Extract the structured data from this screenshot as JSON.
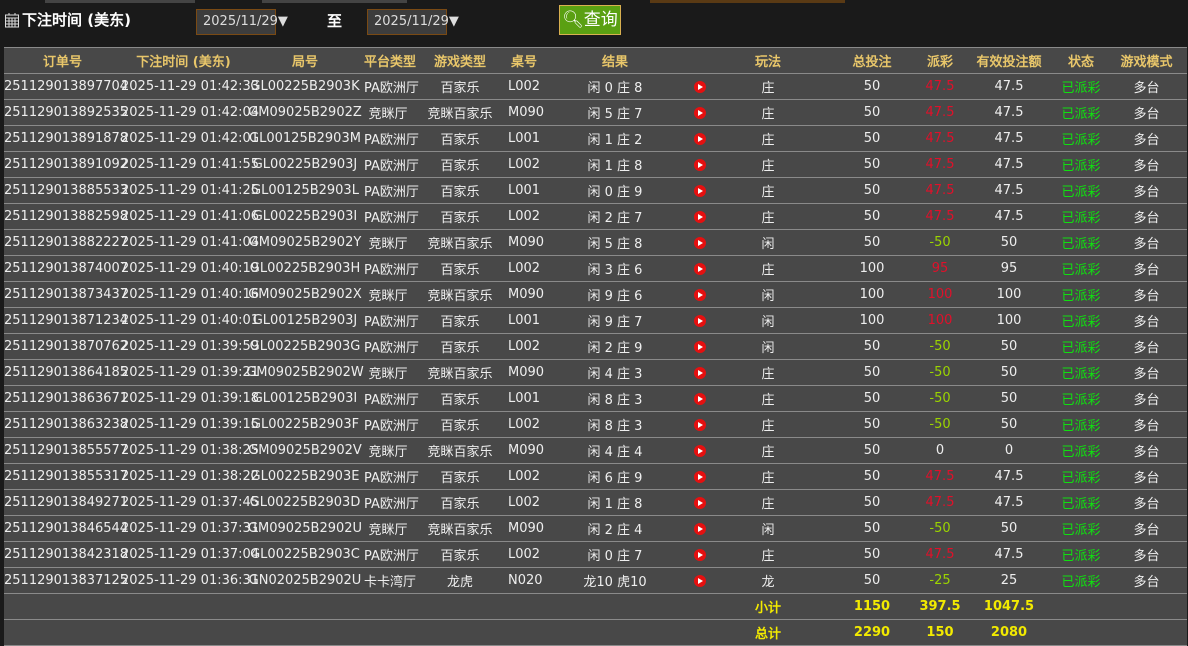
{
  "filter": {
    "label": "下注时间 (美东)",
    "start": "2025/11/29▼",
    "to": "至",
    "end": "2025/11/29▼",
    "query": "查询"
  },
  "headers": [
    "订单号",
    "下注时间 (美东)",
    "局号",
    "平台类型",
    "游戏类型",
    "桌号",
    "结果",
    "",
    "玩法",
    "总投注",
    "派彩",
    "有效投注额",
    "状态",
    "游戏模式"
  ],
  "rows": [
    [
      "251129013897704",
      "2025-11-29 01:42:33",
      "GL00225B2903K",
      "PA欧洲厅",
      "百家乐",
      "L002",
      "闲 0 庄 8",
      "庄",
      "50",
      "47.5",
      "47.5",
      "已派彩",
      "多台"
    ],
    [
      "251129013892535",
      "2025-11-29 01:42:04",
      "GM09025B2902Z",
      "竞眯厅",
      "竞眯百家乐",
      "M090",
      "闲 5 庄 7",
      "庄",
      "50",
      "47.5",
      "47.5",
      "已派彩",
      "多台"
    ],
    [
      "251129013891878",
      "2025-11-29 01:42:01",
      "GL00125B2903M",
      "PA欧洲厅",
      "百家乐",
      "L001",
      "闲 1 庄 2",
      "庄",
      "50",
      "47.5",
      "47.5",
      "已派彩",
      "多台"
    ],
    [
      "251129013891092",
      "2025-11-29 01:41:55",
      "GL00225B2903J",
      "PA欧洲厅",
      "百家乐",
      "L002",
      "闲 1 庄 8",
      "庄",
      "50",
      "47.5",
      "47.5",
      "已派彩",
      "多台"
    ],
    [
      "251129013885533",
      "2025-11-29 01:41:25",
      "GL00125B2903L",
      "PA欧洲厅",
      "百家乐",
      "L001",
      "闲 0 庄 9",
      "庄",
      "50",
      "47.5",
      "47.5",
      "已派彩",
      "多台"
    ],
    [
      "251129013882598",
      "2025-11-29 01:41:06",
      "GL00225B2903I",
      "PA欧洲厅",
      "百家乐",
      "L002",
      "闲 2 庄 7",
      "庄",
      "50",
      "47.5",
      "47.5",
      "已派彩",
      "多台"
    ],
    [
      "251129013882227",
      "2025-11-29 01:41:04",
      "GM09025B2902Y",
      "竞眯厅",
      "竞眯百家乐",
      "M090",
      "闲 5 庄 8",
      "闲",
      "50",
      "-50",
      "50",
      "已派彩",
      "多台"
    ],
    [
      "251129013874007",
      "2025-11-29 01:40:19",
      "GL00225B2903H",
      "PA欧洲厅",
      "百家乐",
      "L002",
      "闲 3 庄 6",
      "庄",
      "100",
      "95",
      "95",
      "已派彩",
      "多台"
    ],
    [
      "251129013873437",
      "2025-11-29 01:40:16",
      "GM09025B2902X",
      "竞眯厅",
      "竞眯百家乐",
      "M090",
      "闲 9 庄 6",
      "闲",
      "100",
      "100",
      "100",
      "已派彩",
      "多台"
    ],
    [
      "251129013871234",
      "2025-11-29 01:40:01",
      "GL00125B2903J",
      "PA欧洲厅",
      "百家乐",
      "L001",
      "闲 9 庄 7",
      "闲",
      "100",
      "100",
      "100",
      "已派彩",
      "多台"
    ],
    [
      "251129013870762",
      "2025-11-29 01:39:59",
      "GL00225B2903G",
      "PA欧洲厅",
      "百家乐",
      "L002",
      "闲 2 庄 9",
      "闲",
      "50",
      "-50",
      "50",
      "已派彩",
      "多台"
    ],
    [
      "251129013864185",
      "2025-11-29 01:39:21",
      "GM09025B2902W",
      "竞眯厅",
      "竞眯百家乐",
      "M090",
      "闲 4 庄 3",
      "庄",
      "50",
      "-50",
      "50",
      "已派彩",
      "多台"
    ],
    [
      "251129013863671",
      "2025-11-29 01:39:18",
      "GL00125B2903I",
      "PA欧洲厅",
      "百家乐",
      "L001",
      "闲 8 庄 3",
      "庄",
      "50",
      "-50",
      "50",
      "已派彩",
      "多台"
    ],
    [
      "251129013863238",
      "2025-11-29 01:39:15",
      "GL00225B2903F",
      "PA欧洲厅",
      "百家乐",
      "L002",
      "闲 8 庄 3",
      "庄",
      "50",
      "-50",
      "50",
      "已派彩",
      "多台"
    ],
    [
      "251129013855577",
      "2025-11-29 01:38:25",
      "GM09025B2902V",
      "竞眯厅",
      "竞眯百家乐",
      "M090",
      "闲 4 庄 4",
      "庄",
      "50",
      "0",
      "0",
      "已派彩",
      "多台"
    ],
    [
      "251129013855317",
      "2025-11-29 01:38:22",
      "GL00225B2903E",
      "PA欧洲厅",
      "百家乐",
      "L002",
      "闲 6 庄 9",
      "庄",
      "50",
      "47.5",
      "47.5",
      "已派彩",
      "多台"
    ],
    [
      "251129013849271",
      "2025-11-29 01:37:45",
      "GL00225B2903D",
      "PA欧洲厅",
      "百家乐",
      "L002",
      "闲 1 庄 8",
      "庄",
      "50",
      "47.5",
      "47.5",
      "已派彩",
      "多台"
    ],
    [
      "251129013846544",
      "2025-11-29 01:37:31",
      "GM09025B2902U",
      "竞眯厅",
      "竞眯百家乐",
      "M090",
      "闲 2 庄 4",
      "闲",
      "50",
      "-50",
      "50",
      "已派彩",
      "多台"
    ],
    [
      "251129013842318",
      "2025-11-29 01:37:04",
      "GL00225B2903C",
      "PA欧洲厅",
      "百家乐",
      "L002",
      "闲 0 庄 7",
      "庄",
      "50",
      "47.5",
      "47.5",
      "已派彩",
      "多台"
    ],
    [
      "251129013837125",
      "2025-11-29 01:36:31",
      "GN02025B2902U",
      "卡卡湾厅",
      "龙虎",
      "N020",
      "龙10 虎10",
      "龙",
      "50",
      "-25",
      "25",
      "已派彩",
      "多台"
    ]
  ],
  "subtotal": {
    "label": "小计",
    "total_bet": "1150",
    "payout": "397.5",
    "valid": "1047.5"
  },
  "total": {
    "label": "总计",
    "total_bet": "2290",
    "payout": "150",
    "valid": "2080"
  },
  "colors": {
    "header": "#e8c66a",
    "payout_positive": "#e0102a",
    "payout_negative": "#9bd400",
    "status": "#10e010",
    "totals": "#f2ea00"
  }
}
